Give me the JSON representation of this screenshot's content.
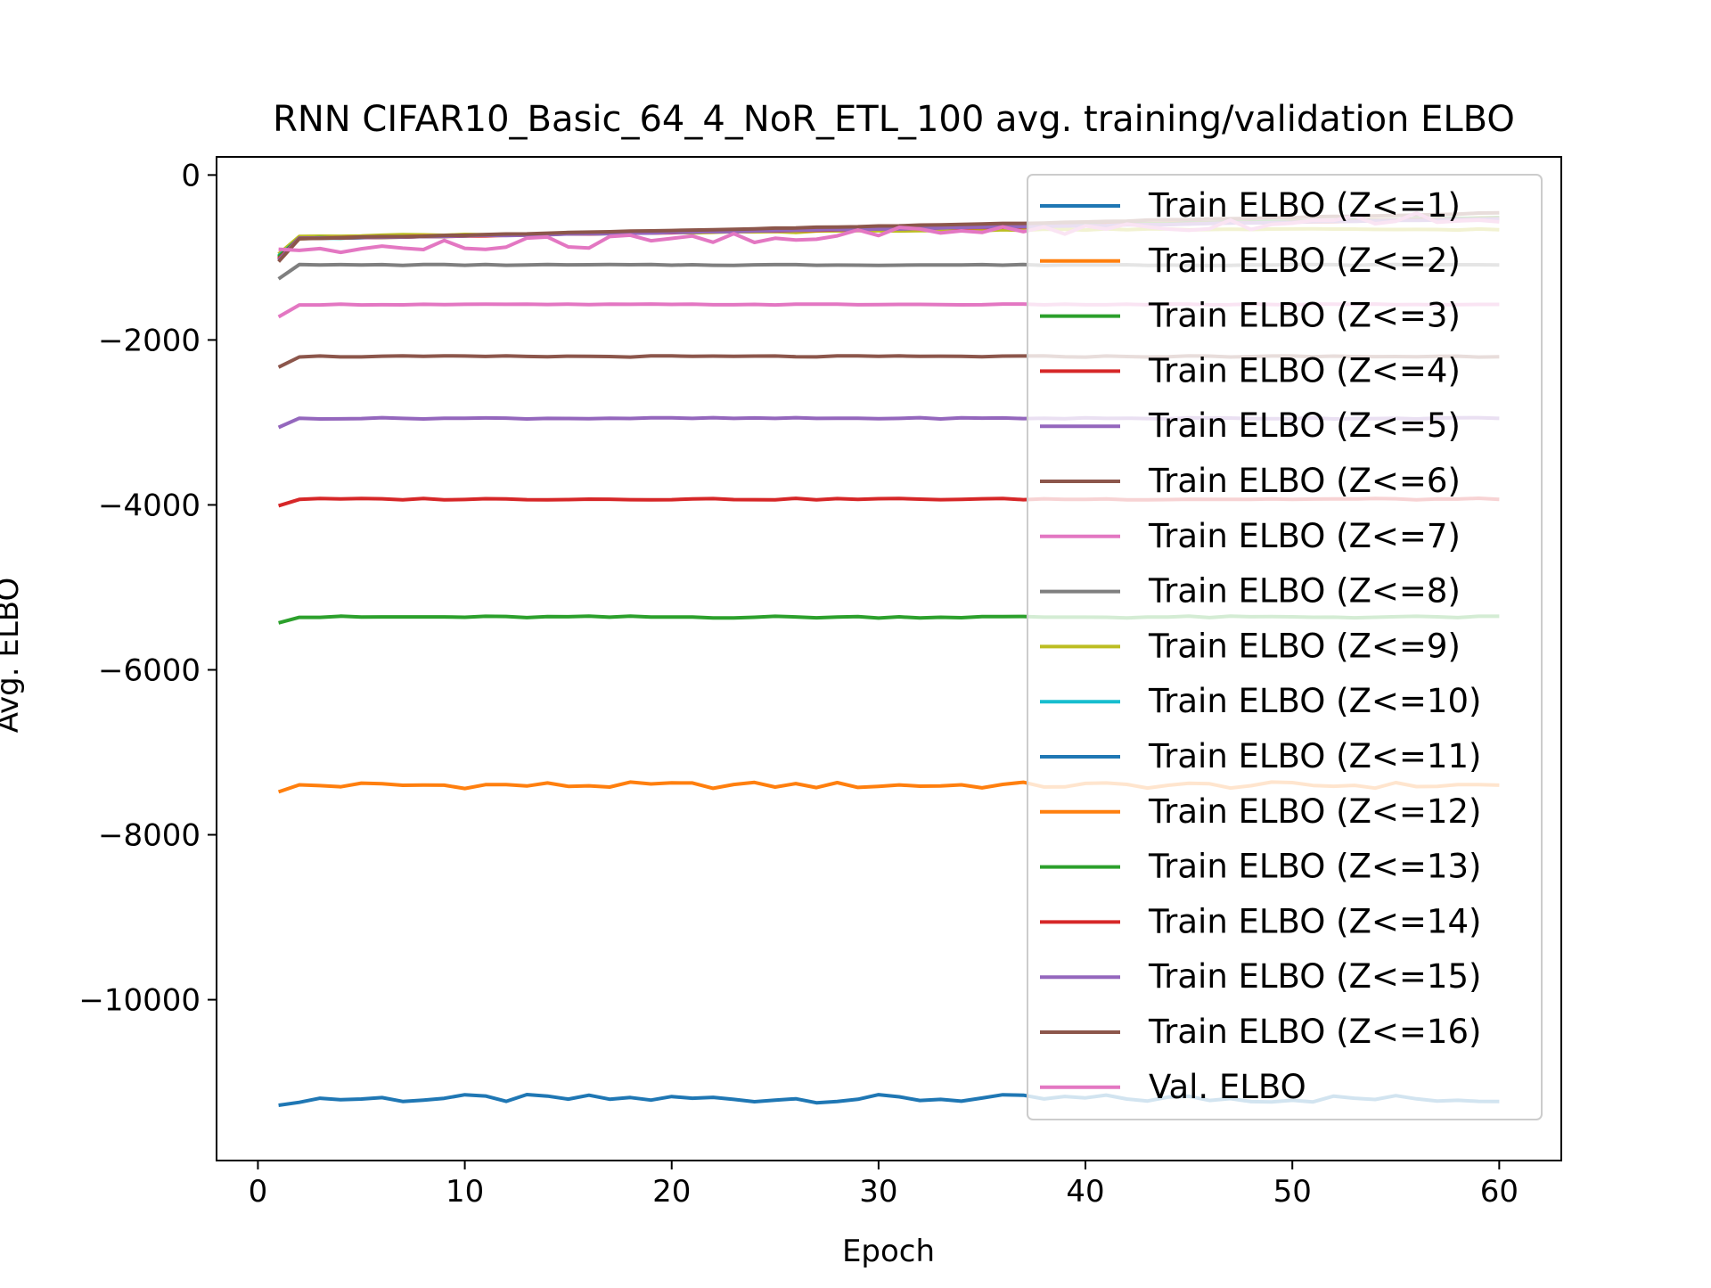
{
  "chart_data": {
    "type": "line",
    "title": "RNN CIFAR10_Basic_64_4_NoR_ETL_100 avg. training/validation ELBO",
    "xlabel": "Epoch",
    "ylabel": "Avg. ELBO",
    "xlim": [
      -2,
      63
    ],
    "ylim": [
      -11950,
      220
    ],
    "x_ticks": [
      0,
      10,
      20,
      30,
      40,
      50,
      60
    ],
    "y_ticks": [
      0,
      -2000,
      -4000,
      -6000,
      -8000,
      -10000
    ],
    "x_tick_labels": [
      "0",
      "10",
      "20",
      "30",
      "40",
      "50",
      "60"
    ],
    "y_tick_labels": [
      "0",
      "−2000",
      "−4000",
      "−6000",
      "−8000",
      "−10000"
    ],
    "grid": false,
    "legend_position": "upper right",
    "epochs_from": 1,
    "epochs_to": 60,
    "series": [
      {
        "name": "Train ELBO (Z<=1)",
        "color": "#1f77b4",
        "level": -11200,
        "start": -11280,
        "noise": 50
      },
      {
        "name": "Train ELBO (Z<=2)",
        "color": "#ff7f0e",
        "level": -7400,
        "start": -7480,
        "noise": 40
      },
      {
        "name": "Train ELBO (Z<=3)",
        "color": "#2ca02c",
        "level": -5360,
        "start": -5430,
        "noise": 12
      },
      {
        "name": "Train ELBO (Z<=4)",
        "color": "#d62728",
        "level": -3930,
        "start": -4010,
        "noise": 10
      },
      {
        "name": "Train ELBO (Z<=5)",
        "color": "#9467bd",
        "level": -2950,
        "start": -3060,
        "noise": 8
      },
      {
        "name": "Train ELBO (Z<=6)",
        "color": "#8c564b",
        "level": -2200,
        "start": -2330,
        "noise": 8
      },
      {
        "name": "Train ELBO (Z<=7)",
        "color": "#e377c2",
        "level": -1570,
        "start": -1720,
        "noise": 6
      },
      {
        "name": "Train ELBO (Z<=8)",
        "color": "#7f7f7f",
        "level": -1090,
        "start": -1260,
        "noise": 6
      },
      {
        "name": "Train ELBO (Z<=9)",
        "color": "#bcbd22",
        "level": -680,
        "start": -960,
        "noise": 8,
        "plateau": true
      },
      {
        "name": "Train ELBO (Z<=10)",
        "color": "#17becf",
        "level": -520,
        "start": -980,
        "noise": 5
      },
      {
        "name": "Train ELBO (Z<=11)",
        "color": "#1f77b4",
        "level": -520,
        "start": -1000,
        "noise": 5
      },
      {
        "name": "Train ELBO (Z<=12)",
        "color": "#ff7f0e",
        "level": -520,
        "start": -1010,
        "noise": 5
      },
      {
        "name": "Train ELBO (Z<=13)",
        "color": "#2ca02c",
        "level": -520,
        "start": -990,
        "noise": 5
      },
      {
        "name": "Train ELBO (Z<=14)",
        "color": "#d62728",
        "level": -530,
        "start": -1020,
        "noise": 5
      },
      {
        "name": "Train ELBO (Z<=15)",
        "color": "#9467bd",
        "level": -530,
        "start": -1030,
        "noise": 5
      },
      {
        "name": "Train ELBO (Z<=16)",
        "color": "#8c564b",
        "level": -460,
        "start": -1050,
        "noise": 5
      },
      {
        "name": "Val. ELBO",
        "color": "#e377c2",
        "level": -560,
        "start": -900,
        "noise": 90,
        "val": true
      }
    ]
  }
}
